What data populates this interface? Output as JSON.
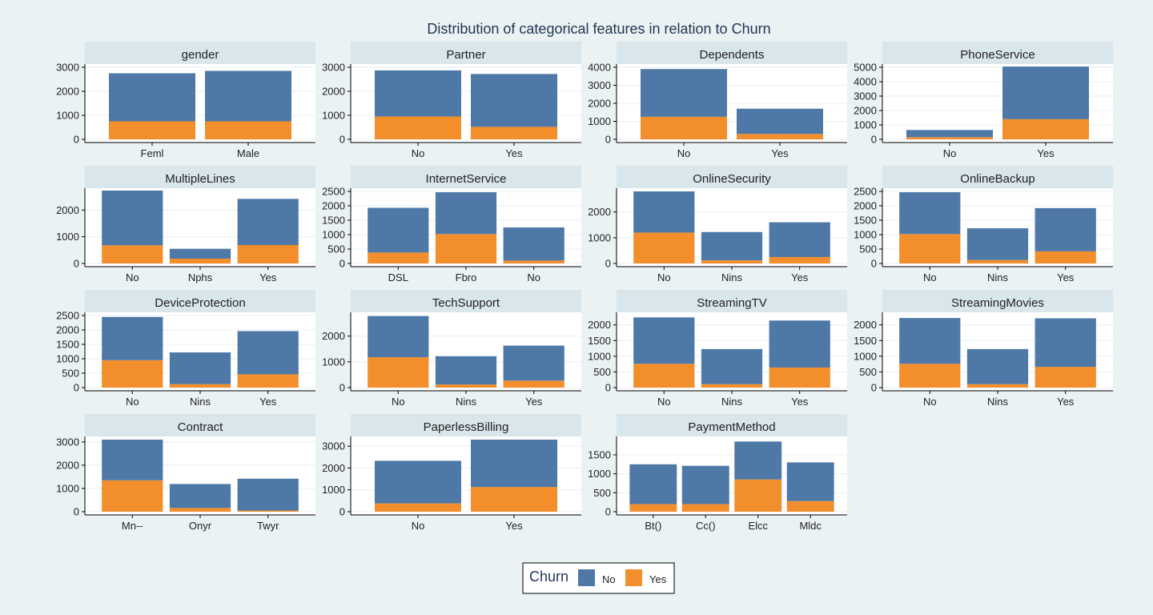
{
  "colors": {
    "No": "#4e79a7",
    "Yes": "#f28e2b",
    "background": "#eaf2f3",
    "strip": "#d9e6eb"
  },
  "chart_data": {
    "type": "bar",
    "stacked": true,
    "title": "Distribution of categorical features in relation to Churn",
    "legend": {
      "title": "Churn",
      "entries": [
        "No",
        "Yes"
      ],
      "placement": "bottom"
    },
    "grid": true,
    "panels": [
      {
        "name": "gender",
        "categories": [
          "Feml",
          "Male"
        ],
        "ylim": [
          0,
          3000
        ],
        "yticks": [
          0,
          1000,
          2000,
          3000
        ],
        "series": [
          {
            "name": "No",
            "values": [
              2000,
              2100
            ]
          },
          {
            "name": "Yes",
            "values": [
              750,
              750
            ]
          }
        ]
      },
      {
        "name": "Partner",
        "categories": [
          "No",
          "Yes"
        ],
        "ylim": [
          0,
          3000
        ],
        "yticks": [
          0,
          1000,
          2000,
          3000
        ],
        "series": [
          {
            "name": "No",
            "values": [
              1920,
              2200
            ]
          },
          {
            "name": "Yes",
            "values": [
              950,
              520
            ]
          }
        ]
      },
      {
        "name": "Dependents",
        "categories": [
          "No",
          "Yes"
        ],
        "ylim": [
          0,
          4000
        ],
        "yticks": [
          0,
          1000,
          2000,
          3000,
          4000
        ],
        "series": [
          {
            "name": "No",
            "values": [
              2650,
              1400
            ]
          },
          {
            "name": "Yes",
            "values": [
              1250,
              300
            ]
          }
        ]
      },
      {
        "name": "PhoneService",
        "categories": [
          "No",
          "Yes"
        ],
        "ylim": [
          0,
          5000
        ],
        "yticks": [
          0,
          1000,
          2000,
          3000,
          4000,
          5000
        ],
        "series": [
          {
            "name": "No",
            "values": [
              500,
              3650
            ]
          },
          {
            "name": "Yes",
            "values": [
              150,
              1400
            ]
          }
        ]
      },
      {
        "name": "MultipleLines",
        "categories": [
          "No",
          "Nphs",
          "Yes"
        ],
        "ylim": [
          0,
          2700
        ],
        "yticks": [
          0,
          1000,
          2000
        ],
        "series": [
          {
            "name": "No",
            "values": [
              2050,
              370,
              1730
            ]
          },
          {
            "name": "Yes",
            "values": [
              680,
              180,
              690
            ]
          }
        ]
      },
      {
        "name": "InternetService",
        "categories": [
          "DSL",
          "Fbro",
          "No"
        ],
        "ylim": [
          0,
          2500
        ],
        "yticks": [
          0,
          500,
          1000,
          1500,
          2000,
          2500
        ],
        "series": [
          {
            "name": "No",
            "values": [
              1550,
              1450,
              1150
            ]
          },
          {
            "name": "Yes",
            "values": [
              380,
              1020,
              100
            ]
          }
        ]
      },
      {
        "name": "OnlineSecurity",
        "categories": [
          "No",
          "Nins",
          "Yes"
        ],
        "ylim": [
          0,
          2800
        ],
        "yticks": [
          0,
          1000,
          2000
        ],
        "series": [
          {
            "name": "No",
            "values": [
              1600,
              1100,
              1350
            ]
          },
          {
            "name": "Yes",
            "values": [
              1200,
              120,
              250
            ]
          }
        ]
      },
      {
        "name": "OnlineBackup",
        "categories": [
          "No",
          "Nins",
          "Yes"
        ],
        "ylim": [
          0,
          2500
        ],
        "yticks": [
          0,
          500,
          1000,
          1500,
          2000,
          2500
        ],
        "series": [
          {
            "name": "No",
            "values": [
              1450,
              1100,
              1500
            ]
          },
          {
            "name": "Yes",
            "values": [
              1020,
              120,
              420
            ]
          }
        ]
      },
      {
        "name": "DeviceProtection",
        "categories": [
          "No",
          "Nins",
          "Yes"
        ],
        "ylim": [
          0,
          2500
        ],
        "yticks": [
          0,
          500,
          1000,
          1500,
          2000,
          2500
        ],
        "series": [
          {
            "name": "No",
            "values": [
              1500,
              1100,
              1500
            ]
          },
          {
            "name": "Yes",
            "values": [
              950,
              120,
              460
            ]
          }
        ]
      },
      {
        "name": "TechSupport",
        "categories": [
          "No",
          "Nins",
          "Yes"
        ],
        "ylim": [
          0,
          2800
        ],
        "yticks": [
          0,
          1000,
          2000
        ],
        "series": [
          {
            "name": "No",
            "values": [
              1600,
              1100,
              1360
            ]
          },
          {
            "name": "Yes",
            "values": [
              1180,
              120,
              270
            ]
          }
        ]
      },
      {
        "name": "StreamingTV",
        "categories": [
          "No",
          "Nins",
          "Yes"
        ],
        "ylim": [
          0,
          2300
        ],
        "yticks": [
          0,
          500,
          1000,
          1500,
          2000
        ],
        "series": [
          {
            "name": "No",
            "values": [
              1480,
              1120,
              1500
            ]
          },
          {
            "name": "Yes",
            "values": [
              760,
              110,
              640
            ]
          }
        ]
      },
      {
        "name": "StreamingMovies",
        "categories": [
          "No",
          "Nins",
          "Yes"
        ],
        "ylim": [
          0,
          2300
        ],
        "yticks": [
          0,
          500,
          1000,
          1500,
          2000
        ],
        "series": [
          {
            "name": "No",
            "values": [
              1460,
              1120,
              1550
            ]
          },
          {
            "name": "Yes",
            "values": [
              760,
              110,
              660
            ]
          }
        ]
      },
      {
        "name": "Contract",
        "categories": [
          "Mn--",
          "Onyr",
          "Twyr"
        ],
        "ylim": [
          0,
          3100
        ],
        "yticks": [
          0,
          1000,
          2000,
          3000
        ],
        "series": [
          {
            "name": "No",
            "values": [
              1750,
              1030,
              1370
            ]
          },
          {
            "name": "Yes",
            "values": [
              1350,
              160,
              50
            ]
          }
        ]
      },
      {
        "name": "PaperlessBilling",
        "categories": [
          "No",
          "Yes"
        ],
        "ylim": [
          0,
          3300
        ],
        "yticks": [
          0,
          1000,
          2000,
          3000
        ],
        "series": [
          {
            "name": "No",
            "values": [
              1950,
              2170
            ]
          },
          {
            "name": "Yes",
            "values": [
              380,
              1130
            ]
          }
        ]
      },
      {
        "name": "PaymentMethod",
        "categories": [
          "Bt()",
          "Cc()",
          "Elcc",
          "Mldc"
        ],
        "ylim": [
          0,
          1900
        ],
        "yticks": [
          0,
          500,
          1000,
          1500
        ],
        "series": [
          {
            "name": "No",
            "values": [
              1050,
              1010,
              1000,
              1020
            ]
          },
          {
            "name": "Yes",
            "values": [
              200,
              200,
              850,
              280
            ]
          }
        ]
      }
    ]
  }
}
